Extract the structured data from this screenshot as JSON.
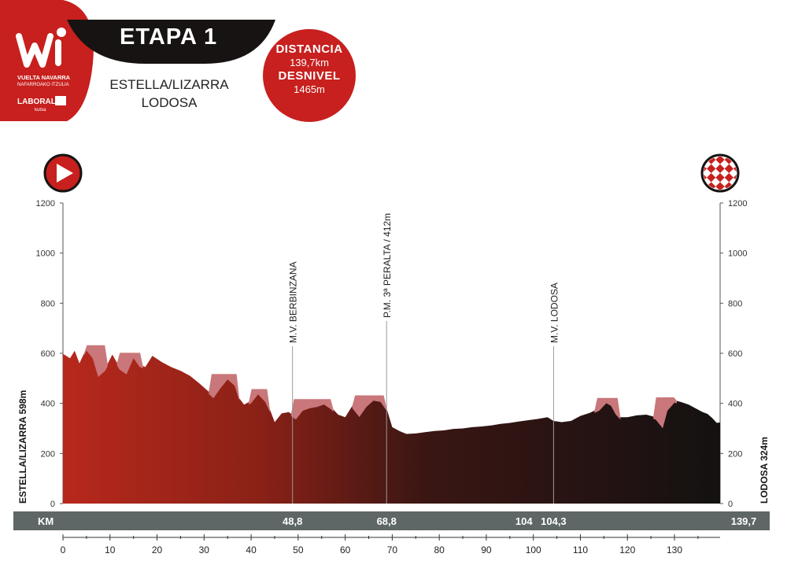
{
  "header": {
    "logo_text_line1": "VUELTA NAVARRA",
    "logo_text_line2": "NAFARROAKO ITZULIA",
    "sponsor": "LABORAL",
    "sponsor_sub": "kutxa",
    "stage_title": "ETAPA 1",
    "start_town": "ESTELLA/LIZARRA",
    "finish_town": "LODOSA",
    "distance_label": "DISTANCIA",
    "distance_value": "139,7km",
    "elevation_label": "DESNIVEL",
    "elevation_value": "1465m"
  },
  "colors": {
    "brand_red": "#c7201e",
    "profile_dark": "#171312",
    "profile_red": "#b8281c",
    "climb_pink": "#c9777a",
    "km_bar": "#5f6766"
  },
  "icons": {
    "start": "play-icon",
    "finish": "checkered-flag-icon"
  },
  "chart_data": {
    "type": "area",
    "xlabel": "",
    "ylabel": "",
    "xlim": [
      0,
      139.7
    ],
    "ylim": [
      0,
      1200
    ],
    "y_ticks": [
      0,
      200,
      400,
      600,
      800,
      1000,
      1200
    ],
    "x_ticks": [
      0,
      10,
      20,
      30,
      40,
      50,
      60,
      70,
      80,
      90,
      100,
      110,
      120,
      130
    ],
    "start_label": "ESTELLA/LIZARRA 598m",
    "finish_label": "LODOSA 324m",
    "km_bar_label": "KM",
    "km_marks": [
      {
        "label": "48,8",
        "km": 48.8
      },
      {
        "label": "68,8",
        "km": 68.8
      },
      {
        "label": "104",
        "km": 98
      },
      {
        "label": "104,3",
        "km": 104.3
      },
      {
        "label": "139,7",
        "km": 139.7
      }
    ],
    "annotations": [
      {
        "text": "M.V. BERBINZANA",
        "km": 48.8
      },
      {
        "text": "P.M. 3ª PERALTA / 412m",
        "km": 68.8
      },
      {
        "text": "M.V. LODOSA",
        "km": 104.3
      }
    ],
    "series": [
      {
        "x": [
          0,
          1.5,
          2.5,
          3.5,
          5,
          6.3,
          7.5,
          9,
          10.5,
          12,
          13.5,
          15,
          16.3,
          17.5,
          19,
          21,
          23,
          25,
          27,
          29,
          30.5,
          32,
          33.5,
          35,
          36.5,
          37.5,
          38.5,
          40,
          41.5,
          43,
          44,
          45,
          46.5,
          48,
          49.5,
          51,
          52.5,
          54,
          55.5,
          57,
          58.5,
          60,
          61.5,
          63,
          64.5,
          66,
          67.5,
          68.8,
          70,
          71.5,
          73,
          75,
          77,
          79,
          81,
          83,
          85,
          87,
          89,
          91,
          93,
          95,
          97,
          99,
          101,
          103,
          104.3,
          106,
          108,
          110,
          112,
          114,
          115.5,
          116.5,
          117.5,
          118.5,
          120,
          122,
          124,
          126,
          127.5,
          128.5,
          130,
          131.5,
          133,
          134.5,
          136,
          137,
          138,
          139,
          139.7
        ],
        "y": [
          598,
          580,
          610,
          560,
          620,
          590,
          515,
          540,
          595,
          545,
          525,
          590,
          555,
          545,
          590,
          565,
          545,
          530,
          510,
          480,
          455,
          430,
          470,
          505,
          480,
          420,
          395,
          410,
          445,
          415,
          375,
          325,
          360,
          365,
          345,
          380,
          390,
          395,
          405,
          385,
          355,
          345,
          390,
          355,
          395,
          420,
          415,
          380,
          305,
          290,
          278,
          280,
          285,
          290,
          292,
          298,
          300,
          305,
          308,
          312,
          318,
          322,
          328,
          333,
          338,
          345,
          330,
          325,
          330,
          350,
          362,
          380,
          410,
          400,
          365,
          345,
          345,
          352,
          355,
          345,
          310,
          380,
          412,
          405,
          395,
          380,
          365,
          358,
          342,
          322,
          324
        ]
      }
    ],
    "climb_segments": [
      [
        4.5,
        9.5
      ],
      [
        11.5,
        17
      ],
      [
        31,
        37.5
      ],
      [
        39.5,
        44
      ],
      [
        48.5,
        57.5
      ],
      [
        61.5,
        68.8
      ],
      [
        113,
        118.5
      ],
      [
        125.5,
        130.5
      ]
    ]
  }
}
